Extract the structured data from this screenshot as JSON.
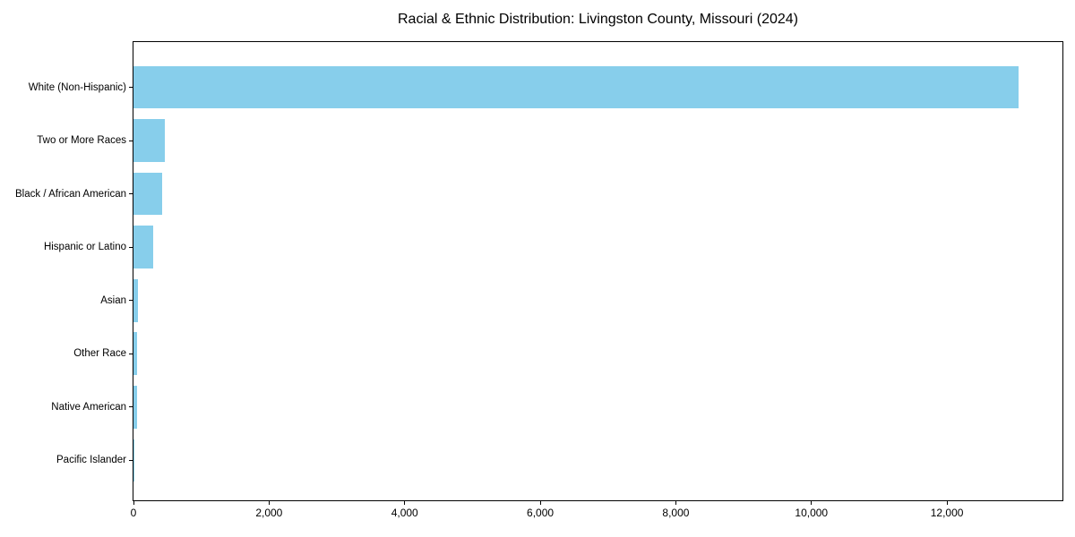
{
  "title": "Racial & Ethnic Distribution: Livingston County, Missouri (2024)",
  "chart_data": {
    "type": "bar",
    "orientation": "horizontal",
    "title": "Racial & Ethnic Distribution: Livingston County, Missouri (2024)",
    "categories": [
      "White (Non-Hispanic)",
      "Two or More Races",
      "Black / African American",
      "Hispanic or Latino",
      "Asian",
      "Other Race",
      "Native American",
      "Pacific Islander"
    ],
    "values": [
      13050,
      460,
      420,
      290,
      62,
      55,
      52,
      8
    ],
    "x_ticks": [
      0,
      2000,
      4000,
      6000,
      8000,
      10000,
      12000
    ],
    "x_tick_labels": [
      "0",
      "2,000",
      "4,000",
      "6,000",
      "8,000",
      "10,000",
      "12,000"
    ],
    "xlim": [
      0,
      13703
    ],
    "xlabel": "",
    "ylabel": "",
    "grid": false,
    "legend": null,
    "bar_color": "#87CEEB",
    "axis_color": "#000000",
    "text_color": "#000000",
    "background_color": "#FFFFFF"
  }
}
